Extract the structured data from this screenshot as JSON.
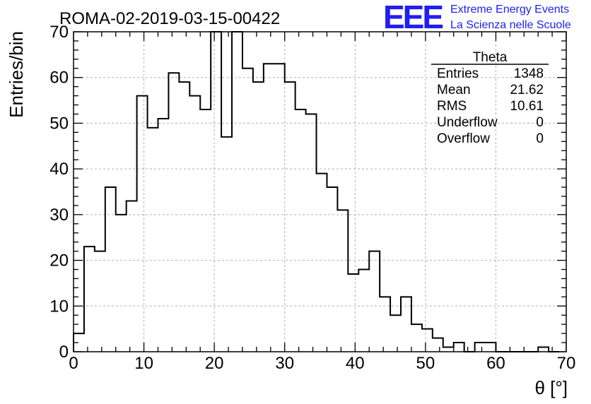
{
  "title": "ROMA-02-2019-03-15-00422",
  "logo": {
    "mark": "EEE",
    "line1": "Extreme Energy Events",
    "line2": "La Scienza nelle Scuole",
    "color": "#1f1ff0"
  },
  "stats_box": {
    "name": "Theta",
    "rows": [
      {
        "label": "Entries",
        "value": "1348"
      },
      {
        "label": "Mean",
        "value": "21.62"
      },
      {
        "label": "RMS",
        "value": "10.61"
      },
      {
        "label": "Underflow",
        "value": "0"
      },
      {
        "label": "Overflow",
        "value": "0"
      }
    ]
  },
  "chart_data": {
    "type": "histogram",
    "xlabel": "θ [°]",
    "ylabel": "Entries/bin",
    "xlim": [
      0,
      70
    ],
    "ylim": [
      0,
      70
    ],
    "x_ticks": [
      0,
      10,
      20,
      30,
      40,
      50,
      60,
      70
    ],
    "y_ticks": [
      0,
      10,
      20,
      30,
      40,
      50,
      60,
      70
    ],
    "grid": true,
    "bin_width": 1.5,
    "bin_start": 0,
    "values": [
      4,
      23,
      22,
      36,
      30,
      33,
      56,
      49,
      51,
      61,
      59,
      56,
      53,
      70,
      47,
      70,
      62,
      59,
      63,
      63,
      59,
      53,
      52,
      39,
      36,
      31,
      17,
      18,
      22,
      12,
      8,
      12,
      6,
      5,
      3,
      1,
      2,
      0,
      2,
      2,
      0,
      0,
      0,
      0,
      1,
      0
    ]
  }
}
